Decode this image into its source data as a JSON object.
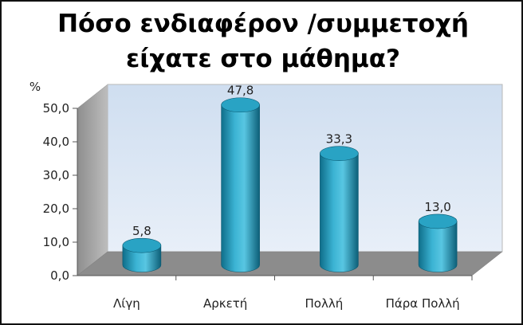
{
  "chart_data": {
    "type": "bar",
    "title_lines": [
      "Πόσο ενδιαφέρον /συμμετοχή",
      "είχατε στο μάθημα?"
    ],
    "ylabel": "%",
    "categories": [
      "Λίγη",
      "Αρκετή",
      "Πολλή",
      "Πάρα Πολλή"
    ],
    "values": [
      5.8,
      47.8,
      33.3,
      13.0
    ],
    "data_labels": [
      "5,8",
      "47,8",
      "33,3",
      "13,0"
    ],
    "yticks": [
      "0,0",
      "10,0",
      "20,0",
      "30,0",
      "40,0",
      "50,0"
    ],
    "ylim": [
      0,
      50
    ],
    "grid": false,
    "legend": "none",
    "style": "3d-cylinder",
    "colors": {
      "bar": "#29a3c4",
      "bar_dark": "#0e6f8c",
      "back_wall": "#dbe7f5",
      "side_wall": "#a6a6a6",
      "floor": "#8c8c8c",
      "axis": "#555555"
    }
  }
}
